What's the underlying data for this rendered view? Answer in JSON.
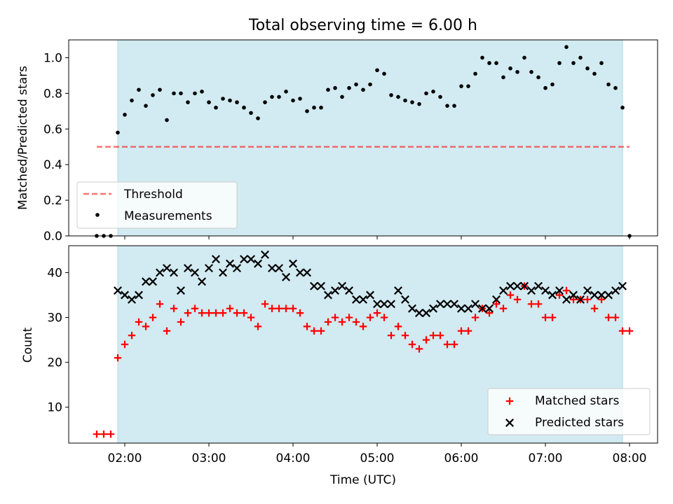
{
  "title": "Total observing time = 6.00 h",
  "colors": {
    "shade": "#add8e6",
    "threshold": "#ff0000",
    "measurement": "#000000",
    "matched": "#ff0000",
    "predicted": "#000000"
  },
  "chart_data": [
    {
      "type": "scatter",
      "panel": "top",
      "ylabel": "Matched/Predicted stars",
      "ylim": [
        0,
        1.1
      ],
      "yticks": [
        "0.0",
        "0.2",
        "0.4",
        "0.6",
        "0.8",
        "1.0"
      ],
      "x_ticks_labeled": false,
      "shaded_span": [
        "01:55",
        "07:55"
      ],
      "threshold": {
        "name": "Threshold",
        "value": 0.5,
        "x_range": [
          "01:40",
          "08:00"
        ],
        "style": "dashed"
      },
      "legend": {
        "placement": "lower-left",
        "entries": [
          "Threshold",
          "Measurements"
        ]
      },
      "series": [
        {
          "name": "Measurements",
          "marker": "dot",
          "points": [
            [
              "01:40",
              0.0
            ],
            [
              "01:45",
              0.0
            ],
            [
              "01:50",
              0.0
            ],
            [
              "01:55",
              0.58
            ],
            [
              "02:00",
              0.68
            ],
            [
              "02:05",
              0.76
            ],
            [
              "02:10",
              0.82
            ],
            [
              "02:15",
              0.73
            ],
            [
              "02:20",
              0.79
            ],
            [
              "02:25",
              0.82
            ],
            [
              "02:30",
              0.65
            ],
            [
              "02:35",
              0.8
            ],
            [
              "02:40",
              0.8
            ],
            [
              "02:45",
              0.75
            ],
            [
              "02:50",
              0.8
            ],
            [
              "02:55",
              0.81
            ],
            [
              "03:00",
              0.75
            ],
            [
              "03:05",
              0.72
            ],
            [
              "03:10",
              0.77
            ],
            [
              "03:15",
              0.76
            ],
            [
              "03:20",
              0.75
            ],
            [
              "03:25",
              0.72
            ],
            [
              "03:30",
              0.69
            ],
            [
              "03:35",
              0.66
            ],
            [
              "03:40",
              0.75
            ],
            [
              "03:45",
              0.78
            ],
            [
              "03:50",
              0.78
            ],
            [
              "03:55",
              0.81
            ],
            [
              "04:00",
              0.76
            ],
            [
              "04:05",
              0.77
            ],
            [
              "04:10",
              0.7
            ],
            [
              "04:15",
              0.72
            ],
            [
              "04:20",
              0.72
            ],
            [
              "04:25",
              0.82
            ],
            [
              "04:30",
              0.83
            ],
            [
              "04:35",
              0.78
            ],
            [
              "04:40",
              0.83
            ],
            [
              "04:45",
              0.85
            ],
            [
              "04:50",
              0.82
            ],
            [
              "04:55",
              0.85
            ],
            [
              "05:00",
              0.93
            ],
            [
              "05:05",
              0.91
            ],
            [
              "05:10",
              0.79
            ],
            [
              "05:15",
              0.78
            ],
            [
              "05:20",
              0.76
            ],
            [
              "05:25",
              0.75
            ],
            [
              "05:30",
              0.74
            ],
            [
              "05:35",
              0.8
            ],
            [
              "05:40",
              0.81
            ],
            [
              "05:45",
              0.78
            ],
            [
              "05:50",
              0.73
            ],
            [
              "05:55",
              0.73
            ],
            [
              "06:00",
              0.84
            ],
            [
              "06:05",
              0.84
            ],
            [
              "06:10",
              0.91
            ],
            [
              "06:15",
              1.0
            ],
            [
              "06:20",
              0.97
            ],
            [
              "06:25",
              0.97
            ],
            [
              "06:30",
              0.89
            ],
            [
              "06:35",
              0.94
            ],
            [
              "06:40",
              0.92
            ],
            [
              "06:45",
              1.0
            ],
            [
              "06:50",
              0.92
            ],
            [
              "06:55",
              0.89
            ],
            [
              "07:00",
              0.83
            ],
            [
              "07:05",
              0.85
            ],
            [
              "07:10",
              0.97
            ],
            [
              "07:15",
              1.06
            ],
            [
              "07:20",
              0.97
            ],
            [
              "07:25",
              1.0
            ],
            [
              "07:30",
              0.94
            ],
            [
              "07:35",
              0.91
            ],
            [
              "07:40",
              0.97
            ],
            [
              "07:45",
              0.85
            ],
            [
              "07:50",
              0.83
            ],
            [
              "07:55",
              0.72
            ],
            [
              "08:00",
              0.0
            ]
          ]
        }
      ]
    },
    {
      "type": "scatter",
      "panel": "bottom",
      "xlabel": "Time (UTC)",
      "ylabel": "Count",
      "ylim": [
        2,
        46
      ],
      "yticks": [
        "10",
        "20",
        "30",
        "40"
      ],
      "xlim": [
        "01:20",
        "08:20"
      ],
      "xticks": [
        "02:00",
        "03:00",
        "04:00",
        "05:00",
        "06:00",
        "07:00",
        "08:00"
      ],
      "shaded_span": [
        "01:55",
        "07:55"
      ],
      "legend": {
        "placement": "lower-right",
        "entries": [
          "Matched stars",
          "Predicted stars"
        ]
      },
      "series": [
        {
          "name": "Matched stars",
          "marker": "plus",
          "points": [
            [
              "01:40",
              4
            ],
            [
              "01:45",
              4
            ],
            [
              "01:50",
              4
            ],
            [
              "01:55",
              21
            ],
            [
              "02:00",
              24
            ],
            [
              "02:05",
              26
            ],
            [
              "02:10",
              29
            ],
            [
              "02:15",
              28
            ],
            [
              "02:20",
              30
            ],
            [
              "02:25",
              33
            ],
            [
              "02:30",
              27
            ],
            [
              "02:35",
              32
            ],
            [
              "02:40",
              29
            ],
            [
              "02:45",
              31
            ],
            [
              "02:50",
              32
            ],
            [
              "02:55",
              31
            ],
            [
              "03:00",
              31
            ],
            [
              "03:05",
              31
            ],
            [
              "03:10",
              31
            ],
            [
              "03:15",
              32
            ],
            [
              "03:20",
              31
            ],
            [
              "03:25",
              31
            ],
            [
              "03:30",
              30
            ],
            [
              "03:35",
              28
            ],
            [
              "03:40",
              33
            ],
            [
              "03:45",
              32
            ],
            [
              "03:50",
              32
            ],
            [
              "03:55",
              32
            ],
            [
              "04:00",
              32
            ],
            [
              "04:05",
              31
            ],
            [
              "04:10",
              28
            ],
            [
              "04:15",
              27
            ],
            [
              "04:20",
              27
            ],
            [
              "04:25",
              29
            ],
            [
              "04:30",
              30
            ],
            [
              "04:35",
              29
            ],
            [
              "04:40",
              30
            ],
            [
              "04:45",
              29
            ],
            [
              "04:50",
              28
            ],
            [
              "04:55",
              30
            ],
            [
              "05:00",
              31
            ],
            [
              "05:05",
              30
            ],
            [
              "05:10",
              26
            ],
            [
              "05:15",
              28
            ],
            [
              "05:20",
              26
            ],
            [
              "05:25",
              24
            ],
            [
              "05:30",
              23
            ],
            [
              "05:35",
              25
            ],
            [
              "05:40",
              26
            ],
            [
              "05:45",
              26
            ],
            [
              "05:50",
              24
            ],
            [
              "05:55",
              24
            ],
            [
              "06:00",
              27
            ],
            [
              "06:05",
              27
            ],
            [
              "06:10",
              30
            ],
            [
              "06:15",
              32
            ],
            [
              "06:20",
              31
            ],
            [
              "06:25",
              33
            ],
            [
              "06:30",
              32
            ],
            [
              "06:35",
              35
            ],
            [
              "06:40",
              34
            ],
            [
              "06:45",
              37
            ],
            [
              "06:50",
              33
            ],
            [
              "06:55",
              33
            ],
            [
              "07:00",
              30
            ],
            [
              "07:05",
              30
            ],
            [
              "07:10",
              35
            ],
            [
              "07:15",
              36
            ],
            [
              "07:20",
              34
            ],
            [
              "07:25",
              34
            ],
            [
              "07:30",
              34
            ],
            [
              "07:35",
              32
            ],
            [
              "07:40",
              34
            ],
            [
              "07:45",
              30
            ],
            [
              "07:50",
              30
            ],
            [
              "07:55",
              27
            ],
            [
              "08:00",
              27
            ]
          ]
        },
        {
          "name": "Predicted stars",
          "marker": "x",
          "points": [
            [
              "01:55",
              36
            ],
            [
              "02:00",
              35
            ],
            [
              "02:05",
              34
            ],
            [
              "02:10",
              35
            ],
            [
              "02:15",
              38
            ],
            [
              "02:20",
              38
            ],
            [
              "02:25",
              40
            ],
            [
              "02:30",
              41
            ],
            [
              "02:35",
              40
            ],
            [
              "02:40",
              36
            ],
            [
              "02:45",
              41
            ],
            [
              "02:50",
              40
            ],
            [
              "02:55",
              38
            ],
            [
              "03:00",
              41
            ],
            [
              "03:05",
              43
            ],
            [
              "03:10",
              40
            ],
            [
              "03:15",
              42
            ],
            [
              "03:20",
              41
            ],
            [
              "03:25",
              43
            ],
            [
              "03:30",
              43
            ],
            [
              "03:35",
              42
            ],
            [
              "03:40",
              44
            ],
            [
              "03:45",
              41
            ],
            [
              "03:50",
              41
            ],
            [
              "03:55",
              39
            ],
            [
              "04:00",
              42
            ],
            [
              "04:05",
              40
            ],
            [
              "04:10",
              40
            ],
            [
              "04:15",
              37
            ],
            [
              "04:20",
              37
            ],
            [
              "04:25",
              35
            ],
            [
              "04:30",
              36
            ],
            [
              "04:35",
              37
            ],
            [
              "04:40",
              36
            ],
            [
              "04:45",
              34
            ],
            [
              "04:50",
              34
            ],
            [
              "04:55",
              35
            ],
            [
              "05:00",
              33
            ],
            [
              "05:05",
              33
            ],
            [
              "05:10",
              33
            ],
            [
              "05:15",
              36
            ],
            [
              "05:20",
              34
            ],
            [
              "05:25",
              32
            ],
            [
              "05:30",
              31
            ],
            [
              "05:35",
              31
            ],
            [
              "05:40",
              32
            ],
            [
              "05:45",
              33
            ],
            [
              "05:50",
              33
            ],
            [
              "05:55",
              33
            ],
            [
              "06:00",
              32
            ],
            [
              "06:05",
              32
            ],
            [
              "06:10",
              33
            ],
            [
              "06:15",
              32
            ],
            [
              "06:20",
              32
            ],
            [
              "06:25",
              34
            ],
            [
              "06:30",
              36
            ],
            [
              "06:35",
              37
            ],
            [
              "06:40",
              37
            ],
            [
              "06:45",
              37
            ],
            [
              "06:50",
              36
            ],
            [
              "06:55",
              37
            ],
            [
              "07:00",
              36
            ],
            [
              "07:05",
              35
            ],
            [
              "07:10",
              36
            ],
            [
              "07:15",
              34
            ],
            [
              "07:20",
              35
            ],
            [
              "07:25",
              34
            ],
            [
              "07:30",
              36
            ],
            [
              "07:35",
              35
            ],
            [
              "07:40",
              35
            ],
            [
              "07:45",
              35
            ],
            [
              "07:50",
              36
            ],
            [
              "07:55",
              37
            ]
          ]
        }
      ]
    }
  ]
}
